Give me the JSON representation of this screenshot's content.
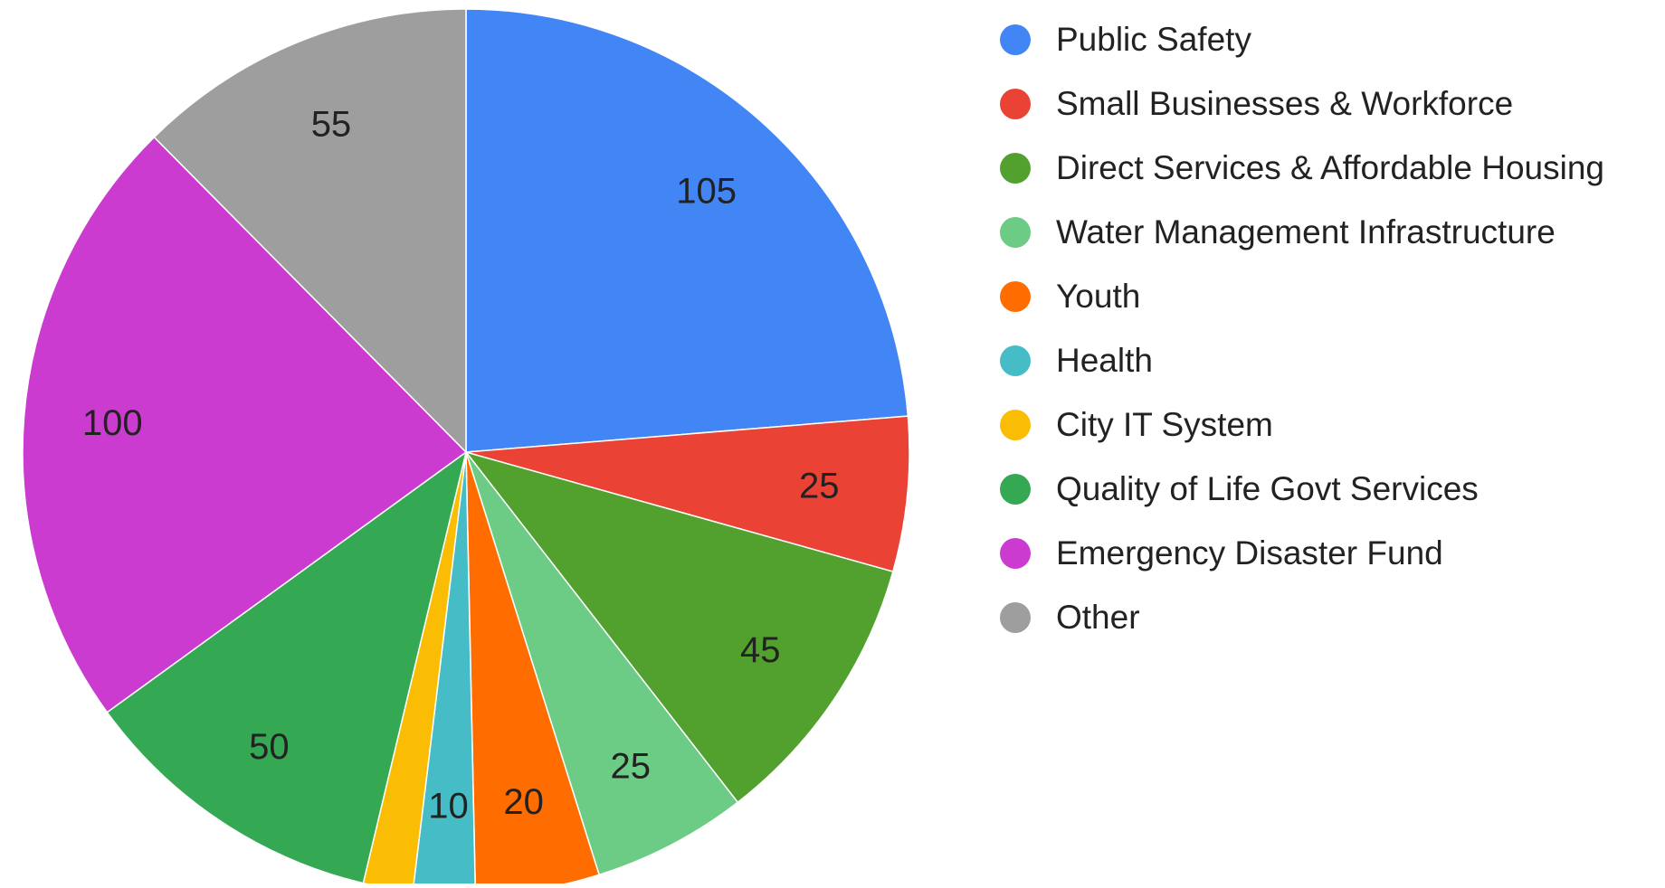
{
  "chart_data": {
    "type": "pie",
    "title": "",
    "categories": [
      "Public Safety",
      "Small Businesses & Workforce",
      "Direct Services & Affordable Housing",
      "Water Management Infrastructure",
      "Youth",
      "Health",
      "City IT System",
      "Quality of Life Govt Services",
      "Emergency Disaster Fund",
      "Other"
    ],
    "values": [
      105,
      25,
      45,
      25,
      20,
      10,
      8,
      50,
      100,
      55
    ],
    "data_labels": [
      "105",
      "25",
      "45",
      "25",
      "20",
      "10",
      "",
      "50",
      "100",
      "55"
    ],
    "colors": [
      "#4285F4",
      "#EA4335",
      "#52A12F",
      "#6CCB85",
      "#FF6D01",
      "#46BDC6",
      "#FBBC04",
      "#34A853",
      "#CB3BD0",
      "#9E9E9E"
    ],
    "legend_position": "right",
    "start_angle": "top, clockwise"
  }
}
